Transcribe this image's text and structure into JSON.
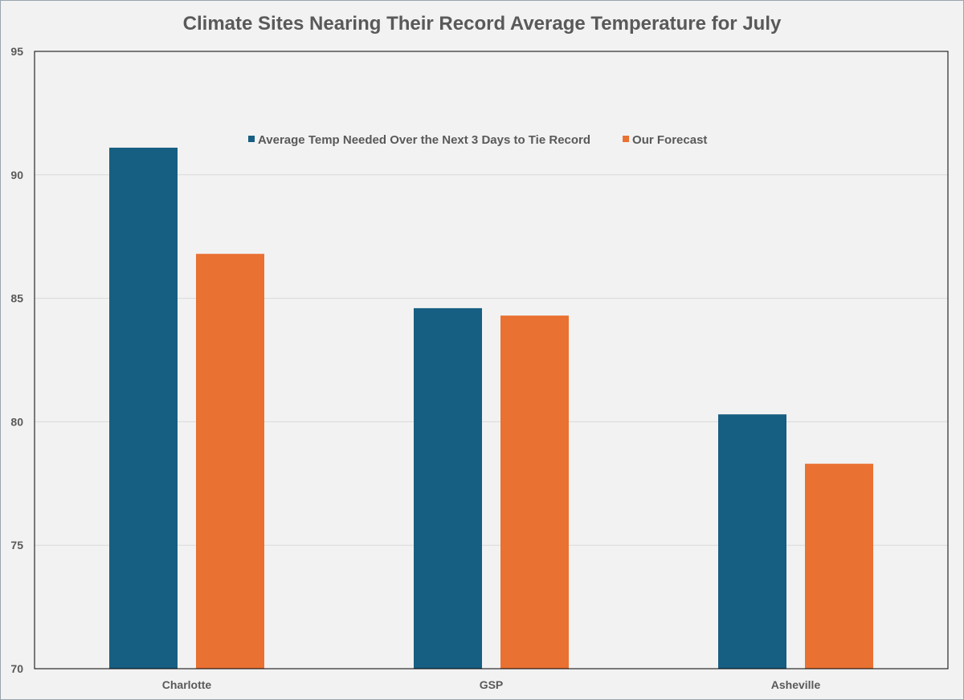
{
  "chart_data": {
    "type": "bar",
    "title": "Climate Sites Nearing Their Record Average Temperature for July",
    "xlabel": "",
    "ylabel": "",
    "categories": [
      "Charlotte",
      "GSP",
      "Asheville"
    ],
    "series": [
      {
        "name": "Average Temp Needed Over the Next 3 Days to Tie Record",
        "color": "#175f82",
        "values": [
          91.1,
          84.6,
          80.3
        ]
      },
      {
        "name": "Our Forecast",
        "color": "#e97132",
        "values": [
          86.8,
          84.3,
          78.3
        ]
      }
    ],
    "ylim": [
      70,
      95
    ],
    "yticks": [
      70,
      75,
      80,
      85,
      90,
      95
    ],
    "grid": true,
    "legend_position": "top"
  }
}
